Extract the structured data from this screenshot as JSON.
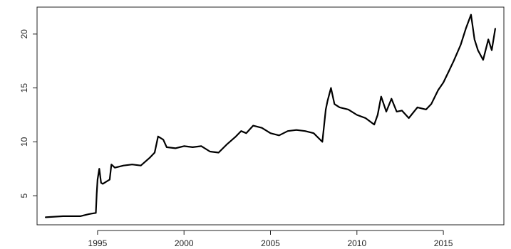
{
  "chart_data": {
    "type": "line",
    "title": "",
    "xlabel": "",
    "ylabel": "",
    "xlim": [
      1991.5,
      2018.5
    ],
    "ylim": [
      2.3,
      22.5
    ],
    "grid": false,
    "x_ticks": [
      1995,
      2000,
      2005,
      2010,
      2015
    ],
    "x_tick_labels": [
      "1995",
      "2000",
      "2005",
      "2010",
      "2015"
    ],
    "y_ticks": [
      5,
      10,
      15,
      20
    ],
    "y_tick_labels": [
      "5",
      "10",
      "15",
      "20"
    ],
    "series": [
      {
        "color": "#000000",
        "x": [
          1992.0,
          1993.0,
          1994.0,
          1994.5,
          1994.9,
          1994.95,
          1995.0,
          1995.1,
          1995.2,
          1995.3,
          1995.5,
          1995.7,
          1995.8,
          1996.0,
          1996.5,
          1997.0,
          1997.5,
          1998.0,
          1998.3,
          1998.5,
          1998.8,
          1999.0,
          1999.5,
          2000.0,
          2000.5,
          2001.0,
          2001.5,
          2002.0,
          2002.5,
          2003.0,
          2003.3,
          2003.6,
          2004.0,
          2004.5,
          2005.0,
          2005.5,
          2006.0,
          2006.5,
          2007.0,
          2007.5,
          2008.0,
          2008.2,
          2008.3,
          2008.5,
          2008.7,
          2009.0,
          2009.5,
          2010.0,
          2010.5,
          2011.0,
          2011.2,
          2011.4,
          2011.7,
          2012.0,
          2012.3,
          2012.6,
          2013.0,
          2013.5,
          2014.0,
          2014.3,
          2014.7,
          2015.0,
          2015.3,
          2015.6,
          2016.0,
          2016.3,
          2016.6,
          2016.8,
          2017.0,
          2017.3,
          2017.6,
          2017.8,
          2018.0
        ],
        "y": [
          3.0,
          3.1,
          3.1,
          3.3,
          3.4,
          5.2,
          6.5,
          7.5,
          6.2,
          6.1,
          6.3,
          6.5,
          7.9,
          7.6,
          7.8,
          7.9,
          7.8,
          8.5,
          9.0,
          10.5,
          10.2,
          9.5,
          9.4,
          9.6,
          9.5,
          9.6,
          9.1,
          9.0,
          9.8,
          10.5,
          11.0,
          10.8,
          11.5,
          11.3,
          10.8,
          10.6,
          11.0,
          11.1,
          11.0,
          10.8,
          10.0,
          13.0,
          13.8,
          15.0,
          13.5,
          13.2,
          13.0,
          12.5,
          12.2,
          11.6,
          12.5,
          14.2,
          12.8,
          14.0,
          12.8,
          12.9,
          12.2,
          13.2,
          13.0,
          13.5,
          14.8,
          15.5,
          16.5,
          17.5,
          19.0,
          20.5,
          21.8,
          19.5,
          18.5,
          17.6,
          19.5,
          18.5,
          20.5
        ]
      }
    ]
  }
}
